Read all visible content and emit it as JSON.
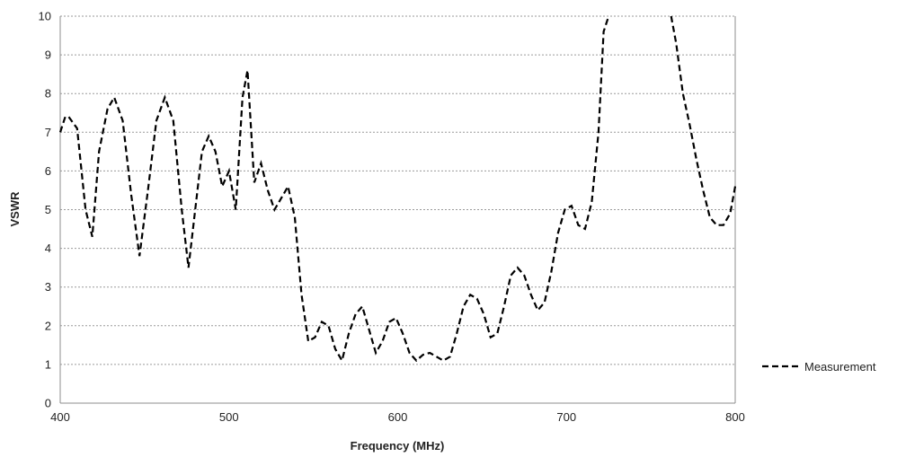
{
  "chart_data": {
    "type": "line",
    "title": "",
    "xlabel": "Frequency (MHz)",
    "ylabel": "VSWR",
    "xlim": [
      400,
      800
    ],
    "ylim": [
      0,
      10
    ],
    "x_ticks": [
      "400",
      "500",
      "600",
      "700",
      "800"
    ],
    "y_ticks": [
      "0",
      "1",
      "2",
      "3",
      "4",
      "5",
      "6",
      "7",
      "8",
      "9",
      "10"
    ],
    "grid": "horizontal dashed",
    "legend": "right",
    "series": [
      {
        "name": "Measurement",
        "color": "#000000",
        "style": "dashed",
        "x": [
          400,
          403,
          405,
          410,
          415,
          419,
          423,
          428,
          432,
          437,
          442,
          447,
          452,
          457,
          462,
          467,
          472,
          476,
          480,
          484,
          488,
          492,
          496,
          500,
          504,
          508,
          511,
          515,
          519,
          523,
          527,
          531,
          535,
          539,
          543,
          547,
          551,
          555,
          559,
          563,
          567,
          571,
          575,
          579,
          583,
          587,
          591,
          595,
          599,
          603,
          607,
          611,
          615,
          619,
          623,
          627,
          631,
          635,
          639,
          643,
          647,
          651,
          655,
          659,
          663,
          667,
          671,
          675,
          679,
          683,
          687,
          691,
          695,
          699,
          703,
          707,
          711,
          715,
          719,
          722,
          725,
          762,
          765,
          769,
          773,
          777,
          781,
          785,
          789,
          793,
          797,
          800
        ],
        "values": [
          7.0,
          7.4,
          7.4,
          7.1,
          5.0,
          4.3,
          6.5,
          7.6,
          7.9,
          7.3,
          5.4,
          3.8,
          5.5,
          7.3,
          7.9,
          7.3,
          5.0,
          3.5,
          5.0,
          6.5,
          6.9,
          6.5,
          5.6,
          6.0,
          5.0,
          7.9,
          8.6,
          5.7,
          6.2,
          5.5,
          5.0,
          5.3,
          5.6,
          4.8,
          2.8,
          1.6,
          1.7,
          2.1,
          2.0,
          1.4,
          1.1,
          1.8,
          2.3,
          2.5,
          1.9,
          1.3,
          1.6,
          2.1,
          2.2,
          1.8,
          1.3,
          1.1,
          1.25,
          1.3,
          1.2,
          1.1,
          1.2,
          1.8,
          2.5,
          2.8,
          2.7,
          2.3,
          1.7,
          1.8,
          2.5,
          3.3,
          3.5,
          3.3,
          2.8,
          2.4,
          2.6,
          3.4,
          4.4,
          5.0,
          5.1,
          4.6,
          4.5,
          5.2,
          7.0,
          9.6,
          10.0,
          10.0,
          9.3,
          8.0,
          7.2,
          6.3,
          5.5,
          4.8,
          4.6,
          4.6,
          4.9,
          5.6
        ]
      }
    ]
  }
}
